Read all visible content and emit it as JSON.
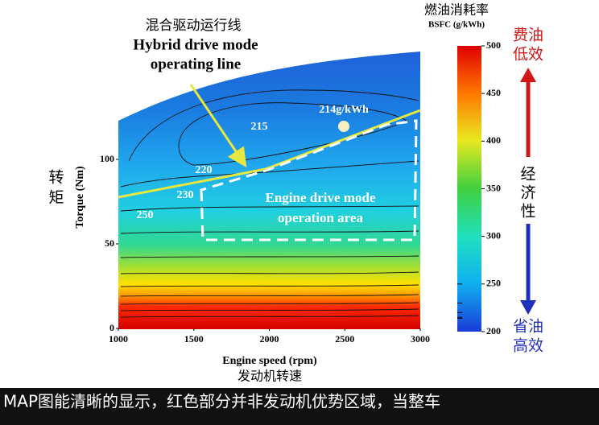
{
  "chart_data": {
    "type": "contour",
    "title": "混合驱动运行线",
    "title_lines": [
      "Hybrid drive mode",
      "operating line"
    ],
    "xlabel": "Engine speed (rpm)",
    "xlabel_cn": "发动机转速",
    "ylabel": "Torque (Nm)",
    "ylabel_cn": [
      "转",
      "矩"
    ],
    "xlim": [
      1000,
      3000
    ],
    "xticks": [
      1000,
      1500,
      2000,
      2500,
      3000
    ],
    "ylim": [
      0,
      160
    ],
    "yticks": [
      0,
      50,
      100
    ],
    "contour_levels": [
      214,
      215,
      220,
      230,
      250
    ],
    "value_labels": [
      "214g/kWh",
      "215",
      "220",
      "230",
      "250"
    ],
    "region_label": [
      "Engine drive mode",
      "operation area"
    ],
    "colorbar": {
      "title": "燃油消耗率",
      "subtitle": "BSFC (g/kWh)",
      "lim": [
        200,
        500
      ],
      "ticks": [
        200,
        250,
        300,
        350,
        400,
        450,
        500
      ]
    },
    "side_labels": {
      "top": [
        "费油",
        "低效"
      ],
      "middle": [
        "经",
        "济",
        "性"
      ],
      "bottom": [
        "省油",
        "高效"
      ]
    },
    "caption": "MAP图能清晰的显示，红色部分并非发动机优势区域，当整车"
  }
}
